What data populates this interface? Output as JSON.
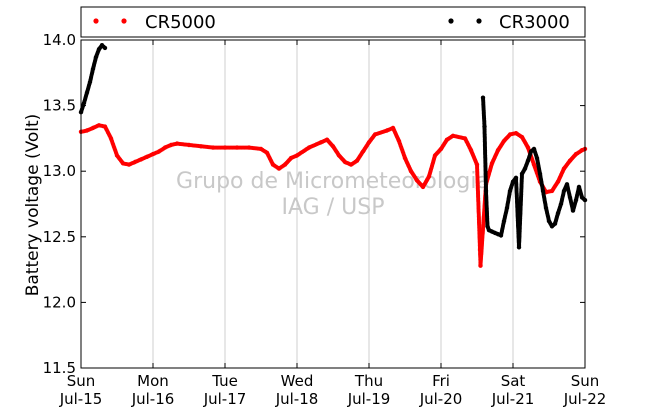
{
  "chart_data": {
    "type": "scatter",
    "title": "",
    "ylabel": "Battery voltage (Volt)",
    "xlabel": "",
    "ylim": [
      11.5,
      14.0
    ],
    "xlim": [
      "2012-07-15",
      "2012-07-22"
    ],
    "grid": "vertical",
    "legend": "top",
    "x_ticks": [
      {
        "day": "Sun",
        "date": "Jul-15"
      },
      {
        "day": "Mon",
        "date": "Jul-16"
      },
      {
        "day": "Tue",
        "date": "Jul-17"
      },
      {
        "day": "Wed",
        "date": "Jul-18"
      },
      {
        "day": "Thu",
        "date": "Jul-19"
      },
      {
        "day": "Fri",
        "date": "Jul-20"
      },
      {
        "day": "Sat",
        "date": "Jul-21"
      },
      {
        "day": "Sun",
        "date": "Jul-22"
      }
    ],
    "y_ticks": [
      "11.5",
      "12.0",
      "12.5",
      "13.0",
      "13.5",
      "14.0"
    ],
    "watermark": [
      "Grupo de Micrometeorologia",
      "IAG / USP"
    ],
    "series": [
      {
        "name": "CR5000",
        "color": "#ff0000",
        "points": [
          [
            "2012-07-15 00:00",
            13.3
          ],
          [
            "2012-07-15 02:00",
            13.31
          ],
          [
            "2012-07-15 04:00",
            13.33
          ],
          [
            "2012-07-15 06:00",
            13.35
          ],
          [
            "2012-07-15 08:00",
            13.34
          ],
          [
            "2012-07-15 10:00",
            13.25
          ],
          [
            "2012-07-15 12:00",
            13.12
          ],
          [
            "2012-07-15 14:00",
            13.06
          ],
          [
            "2012-07-15 16:00",
            13.05
          ],
          [
            "2012-07-15 18:00",
            13.07
          ],
          [
            "2012-07-15 20:00",
            13.09
          ],
          [
            "2012-07-15 22:00",
            13.11
          ],
          [
            "2012-07-16 00:00",
            13.13
          ],
          [
            "2012-07-16 02:00",
            13.15
          ],
          [
            "2012-07-16 04:00",
            13.18
          ],
          [
            "2012-07-16 06:00",
            13.2
          ],
          [
            "2012-07-16 08:00",
            13.21
          ],
          [
            "2012-07-16 12:00",
            13.2
          ],
          [
            "2012-07-16 16:00",
            13.19
          ],
          [
            "2012-07-16 20:00",
            13.18
          ],
          [
            "2012-07-17 00:00",
            13.18
          ],
          [
            "2012-07-17 04:00",
            13.18
          ],
          [
            "2012-07-17 08:00",
            13.18
          ],
          [
            "2012-07-17 12:00",
            13.17
          ],
          [
            "2012-07-17 14:00",
            13.14
          ],
          [
            "2012-07-17 16:00",
            13.05
          ],
          [
            "2012-07-17 18:00",
            13.02
          ],
          [
            "2012-07-17 20:00",
            13.05
          ],
          [
            "2012-07-17 22:00",
            13.1
          ],
          [
            "2012-07-18 00:00",
            13.12
          ],
          [
            "2012-07-18 04:00",
            13.18
          ],
          [
            "2012-07-18 08:00",
            13.22
          ],
          [
            "2012-07-18 10:00",
            13.24
          ],
          [
            "2012-07-18 12:00",
            13.19
          ],
          [
            "2012-07-18 14:00",
            13.12
          ],
          [
            "2012-07-18 16:00",
            13.07
          ],
          [
            "2012-07-18 18:00",
            13.05
          ],
          [
            "2012-07-18 20:00",
            13.08
          ],
          [
            "2012-07-18 22:00",
            13.15
          ],
          [
            "2012-07-19 00:00",
            13.22
          ],
          [
            "2012-07-19 02:00",
            13.28
          ],
          [
            "2012-07-19 06:00",
            13.31
          ],
          [
            "2012-07-19 08:00",
            13.33
          ],
          [
            "2012-07-19 10:00",
            13.23
          ],
          [
            "2012-07-19 12:00",
            13.1
          ],
          [
            "2012-07-19 14:00",
            13.0
          ],
          [
            "2012-07-19 16:00",
            12.93
          ],
          [
            "2012-07-19 18:00",
            12.88
          ],
          [
            "2012-07-19 20:00",
            12.96
          ],
          [
            "2012-07-19 22:00",
            13.12
          ],
          [
            "2012-07-20 00:00",
            13.17
          ],
          [
            "2012-07-20 02:00",
            13.24
          ],
          [
            "2012-07-20 04:00",
            13.27
          ],
          [
            "2012-07-20 08:00",
            13.25
          ],
          [
            "2012-07-20 10:00",
            13.16
          ],
          [
            "2012-07-20 12:00",
            13.05
          ],
          [
            "2012-07-20 13:00",
            12.4
          ],
          [
            "2012-07-20 13:10",
            12.28
          ],
          [
            "2012-07-20 15:00",
            12.9
          ],
          [
            "2012-07-20 17:00",
            13.06
          ],
          [
            "2012-07-20 19:00",
            13.16
          ],
          [
            "2012-07-20 21:00",
            13.23
          ],
          [
            "2012-07-20 23:00",
            13.28
          ],
          [
            "2012-07-21 01:00",
            13.29
          ],
          [
            "2012-07-21 03:00",
            13.26
          ],
          [
            "2012-07-21 05:00",
            13.18
          ],
          [
            "2012-07-21 07:00",
            13.05
          ],
          [
            "2012-07-21 09:00",
            12.92
          ],
          [
            "2012-07-21 11:00",
            12.84
          ],
          [
            "2012-07-21 13:00",
            12.85
          ],
          [
            "2012-07-21 15:00",
            12.92
          ],
          [
            "2012-07-21 17:00",
            13.02
          ],
          [
            "2012-07-21 19:00",
            13.08
          ],
          [
            "2012-07-21 21:00",
            13.13
          ],
          [
            "2012-07-21 23:00",
            13.16
          ],
          [
            "2012-07-22 00:00",
            13.17
          ]
        ]
      },
      {
        "name": "CR3000",
        "color": "#000000",
        "points": [
          [
            "2012-07-15 00:00",
            13.45
          ],
          [
            "2012-07-15 01:00",
            13.52
          ],
          [
            "2012-07-15 02:00",
            13.6
          ],
          [
            "2012-07-15 03:00",
            13.68
          ],
          [
            "2012-07-15 04:00",
            13.78
          ],
          [
            "2012-07-15 05:00",
            13.87
          ],
          [
            "2012-07-15 06:00",
            13.93
          ],
          [
            "2012-07-15 07:00",
            13.96
          ],
          [
            "2012-07-15 08:00",
            13.94
          ],
          [
            "2012-07-20 14:00",
            13.56
          ],
          [
            "2012-07-20 14:30",
            13.34
          ],
          [
            "2012-07-20 15:00",
            12.85
          ],
          [
            "2012-07-20 15:30",
            12.58
          ],
          [
            "2012-07-20 16:00",
            12.55
          ],
          [
            "2012-07-20 17:00",
            12.54
          ],
          [
            "2012-07-20 18:00",
            12.53
          ],
          [
            "2012-07-20 19:00",
            12.52
          ],
          [
            "2012-07-20 20:00",
            12.51
          ],
          [
            "2012-07-20 21:00",
            12.62
          ],
          [
            "2012-07-20 22:00",
            12.72
          ],
          [
            "2012-07-20 23:00",
            12.85
          ],
          [
            "2012-07-21 00:00",
            12.92
          ],
          [
            "2012-07-21 01:00",
            12.95
          ],
          [
            "2012-07-21 02:00",
            12.42
          ],
          [
            "2012-07-21 03:00",
            12.98
          ],
          [
            "2012-07-21 04:00",
            13.02
          ],
          [
            "2012-07-21 05:00",
            13.08
          ],
          [
            "2012-07-21 06:00",
            13.15
          ],
          [
            "2012-07-21 07:00",
            13.17
          ],
          [
            "2012-07-21 08:00",
            13.1
          ],
          [
            "2012-07-21 09:00",
            12.98
          ],
          [
            "2012-07-21 10:00",
            12.85
          ],
          [
            "2012-07-21 11:00",
            12.72
          ],
          [
            "2012-07-21 12:00",
            12.62
          ],
          [
            "2012-07-21 13:00",
            12.58
          ],
          [
            "2012-07-21 14:00",
            12.6
          ],
          [
            "2012-07-21 15:00",
            12.68
          ],
          [
            "2012-07-21 16:00",
            12.75
          ],
          [
            "2012-07-21 17:00",
            12.85
          ],
          [
            "2012-07-21 18:00",
            12.9
          ],
          [
            "2012-07-21 19:00",
            12.8
          ],
          [
            "2012-07-21 20:00",
            12.7
          ],
          [
            "2012-07-21 21:00",
            12.78
          ],
          [
            "2012-07-21 22:00",
            12.88
          ],
          [
            "2012-07-21 23:00",
            12.8
          ],
          [
            "2012-07-22 00:00",
            12.78
          ]
        ]
      }
    ]
  }
}
